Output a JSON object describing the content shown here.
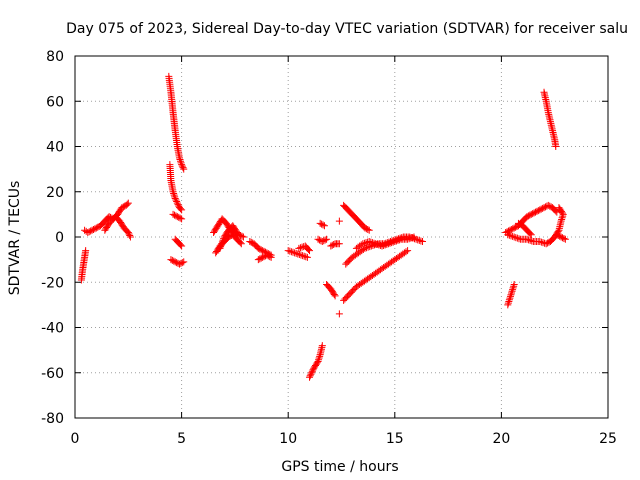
{
  "chart_data": {
    "type": "scatter",
    "title": "Day 075 of 2023, Sidereal Day-to-day VTEC variation (SDTVAR) for receiver salu",
    "xlabel": "GPS time / hours",
    "ylabel": "SDTVAR / TECUs",
    "xlim": [
      0,
      25
    ],
    "ylim": [
      -80,
      80
    ],
    "xticks": [
      0,
      5,
      10,
      15,
      20,
      25
    ],
    "xtick_labels": [
      "0",
      "5",
      "10",
      "15",
      "20",
      "25"
    ],
    "yticks": [
      -80,
      -60,
      -40,
      -20,
      0,
      20,
      40,
      60,
      80
    ],
    "ytick_labels": [
      "-80",
      "-60",
      "-40",
      "-20",
      "0",
      "20",
      "40",
      "60",
      "80"
    ],
    "grid": true,
    "marker": "plus",
    "color": "#ff0000",
    "series": [
      {
        "name": "SDTVAR",
        "segments": [
          [
            [
              0.3,
              -19
            ],
            [
              0.35,
              -15
            ],
            [
              0.4,
              -12
            ],
            [
              0.45,
              -9
            ],
            [
              0.5,
              -6
            ]
          ],
          [
            [
              0.45,
              3
            ],
            [
              0.6,
              2
            ],
            [
              0.8,
              3
            ],
            [
              1.0,
              4
            ],
            [
              1.2,
              5
            ],
            [
              1.4,
              7
            ],
            [
              1.6,
              9
            ],
            [
              1.8,
              8
            ],
            [
              2.0,
              10
            ],
            [
              2.2,
              13
            ],
            [
              2.4,
              14
            ],
            [
              2.5,
              15
            ]
          ],
          [
            [
              1.4,
              3
            ],
            [
              1.6,
              6
            ],
            [
              1.9,
              9
            ],
            [
              2.1,
              7
            ],
            [
              2.3,
              4
            ],
            [
              2.5,
              2
            ],
            [
              2.6,
              0
            ]
          ],
          [
            [
              4.4,
              71
            ],
            [
              4.5,
              64
            ],
            [
              4.6,
              55
            ],
            [
              4.7,
              47
            ],
            [
              4.8,
              40
            ],
            [
              4.9,
              35
            ],
            [
              5.0,
              32
            ],
            [
              5.1,
              30
            ]
          ],
          [
            [
              4.45,
              32
            ],
            [
              4.5,
              25
            ],
            [
              4.6,
              20
            ],
            [
              4.7,
              17
            ],
            [
              4.8,
              15
            ],
            [
              4.9,
              13
            ],
            [
              5.0,
              12
            ]
          ],
          [
            [
              4.6,
              10
            ],
            [
              4.8,
              9
            ],
            [
              5.0,
              8
            ]
          ],
          [
            [
              4.7,
              -1
            ],
            [
              4.9,
              -3
            ],
            [
              5.0,
              -4
            ]
          ],
          [
            [
              4.5,
              -10
            ],
            [
              4.7,
              -11
            ],
            [
              4.9,
              -12
            ],
            [
              5.1,
              -11
            ]
          ],
          [
            [
              6.6,
              -7
            ],
            [
              6.8,
              -4
            ],
            [
              7.0,
              -2
            ],
            [
              7.2,
              0
            ],
            [
              7.4,
              1
            ],
            [
              7.6,
              -1
            ],
            [
              7.8,
              -3
            ]
          ],
          [
            [
              6.5,
              2
            ],
            [
              6.7,
              5
            ],
            [
              6.9,
              8
            ],
            [
              7.1,
              6
            ],
            [
              7.3,
              3
            ],
            [
              7.5,
              2
            ],
            [
              7.7,
              1
            ],
            [
              7.9,
              0
            ]
          ],
          [
            [
              6.8,
              -5
            ],
            [
              7.0,
              0
            ],
            [
              7.2,
              3
            ],
            [
              7.4,
              5
            ],
            [
              7.6,
              2
            ]
          ],
          [
            [
              8.2,
              -2
            ],
            [
              8.4,
              -3
            ],
            [
              8.6,
              -5
            ],
            [
              8.8,
              -6
            ],
            [
              9.0,
              -7
            ],
            [
              9.2,
              -8
            ]
          ],
          [
            [
              8.6,
              -10
            ],
            [
              8.8,
              -9
            ],
            [
              9.0,
              -8
            ],
            [
              9.2,
              -9
            ]
          ],
          [
            [
              10.0,
              -6
            ],
            [
              10.3,
              -7
            ],
            [
              10.6,
              -8
            ],
            [
              10.9,
              -9
            ]
          ],
          [
            [
              10.5,
              -5
            ],
            [
              10.8,
              -4
            ],
            [
              11.0,
              -6
            ]
          ],
          [
            [
              11.0,
              -62
            ],
            [
              11.1,
              -60
            ],
            [
              11.2,
              -58
            ],
            [
              11.4,
              -55
            ],
            [
              11.5,
              -52
            ],
            [
              11.6,
              -48
            ]
          ],
          [
            [
              11.5,
              6
            ],
            [
              11.7,
              5
            ]
          ],
          [
            [
              11.4,
              -1
            ],
            [
              11.6,
              -2
            ],
            [
              11.8,
              -1
            ]
          ],
          [
            [
              12.0,
              -4
            ],
            [
              12.2,
              -3
            ],
            [
              12.4,
              -3
            ]
          ],
          [
            [
              11.8,
              -21
            ],
            [
              12.0,
              -23
            ],
            [
              12.2,
              -26
            ]
          ],
          [
            [
              12.4,
              -34
            ]
          ],
          [
            [
              12.4,
              7
            ]
          ],
          [
            [
              12.6,
              14
            ],
            [
              12.8,
              12
            ],
            [
              13.0,
              10
            ],
            [
              13.2,
              8
            ],
            [
              13.4,
              6
            ],
            [
              13.6,
              4
            ],
            [
              13.8,
              3
            ]
          ],
          [
            [
              12.6,
              -28
            ],
            [
              12.9,
              -25
            ],
            [
              13.2,
              -22
            ],
            [
              13.5,
              -20
            ],
            [
              13.8,
              -18
            ],
            [
              14.1,
              -16
            ],
            [
              14.4,
              -14
            ],
            [
              14.7,
              -12
            ],
            [
              15.0,
              -10
            ],
            [
              15.3,
              -8
            ],
            [
              15.6,
              -6
            ]
          ],
          [
            [
              12.7,
              -12
            ],
            [
              13.0,
              -9
            ],
            [
              13.3,
              -7
            ],
            [
              13.6,
              -5
            ],
            [
              13.9,
              -4
            ],
            [
              14.2,
              -3
            ],
            [
              14.5,
              -3
            ],
            [
              14.8,
              -2
            ],
            [
              15.1,
              -1
            ],
            [
              15.4,
              0
            ],
            [
              15.7,
              0
            ],
            [
              16.0,
              -1
            ],
            [
              16.3,
              -2
            ]
          ],
          [
            [
              13.2,
              -5
            ],
            [
              13.5,
              -3
            ],
            [
              13.8,
              -2
            ],
            [
              14.1,
              -3
            ],
            [
              14.4,
              -4
            ],
            [
              14.7,
              -3
            ],
            [
              15.0,
              -2
            ],
            [
              15.3,
              -1
            ],
            [
              15.6,
              -1
            ],
            [
              15.9,
              0
            ]
          ],
          [
            [
              20.3,
              -30
            ],
            [
              20.4,
              -27
            ],
            [
              20.5,
              -24
            ],
            [
              20.6,
              -21
            ]
          ],
          [
            [
              20.2,
              2
            ],
            [
              20.4,
              3
            ],
            [
              20.6,
              4
            ],
            [
              20.8,
              5
            ],
            [
              21.0,
              7
            ],
            [
              21.2,
              9
            ],
            [
              21.4,
              10
            ],
            [
              21.6,
              11
            ],
            [
              21.8,
              12
            ],
            [
              22.0,
              13
            ],
            [
              22.2,
              14
            ],
            [
              22.4,
              13
            ],
            [
              22.6,
              11
            ]
          ],
          [
            [
              20.3,
              1
            ],
            [
              20.6,
              0
            ],
            [
              20.9,
              -1
            ],
            [
              21.2,
              -1
            ],
            [
              21.5,
              -2
            ],
            [
              21.8,
              -2
            ],
            [
              22.1,
              -3
            ],
            [
              22.3,
              -2
            ],
            [
              22.5,
              0
            ],
            [
              22.7,
              3
            ],
            [
              22.8,
              7
            ],
            [
              22.9,
              10
            ],
            [
              22.7,
              13
            ]
          ],
          [
            [
              20.8,
              6
            ],
            [
              21.0,
              5
            ],
            [
              21.2,
              3
            ],
            [
              21.4,
              1
            ]
          ],
          [
            [
              22.6,
              1
            ],
            [
              22.8,
              0
            ],
            [
              23.0,
              -1
            ]
          ],
          [
            [
              22.0,
              64
            ],
            [
              22.1,
              60
            ],
            [
              22.2,
              55
            ],
            [
              22.3,
              51
            ],
            [
              22.4,
              47
            ],
            [
              22.5,
              43
            ],
            [
              22.55,
              40
            ]
          ]
        ]
      }
    ]
  }
}
